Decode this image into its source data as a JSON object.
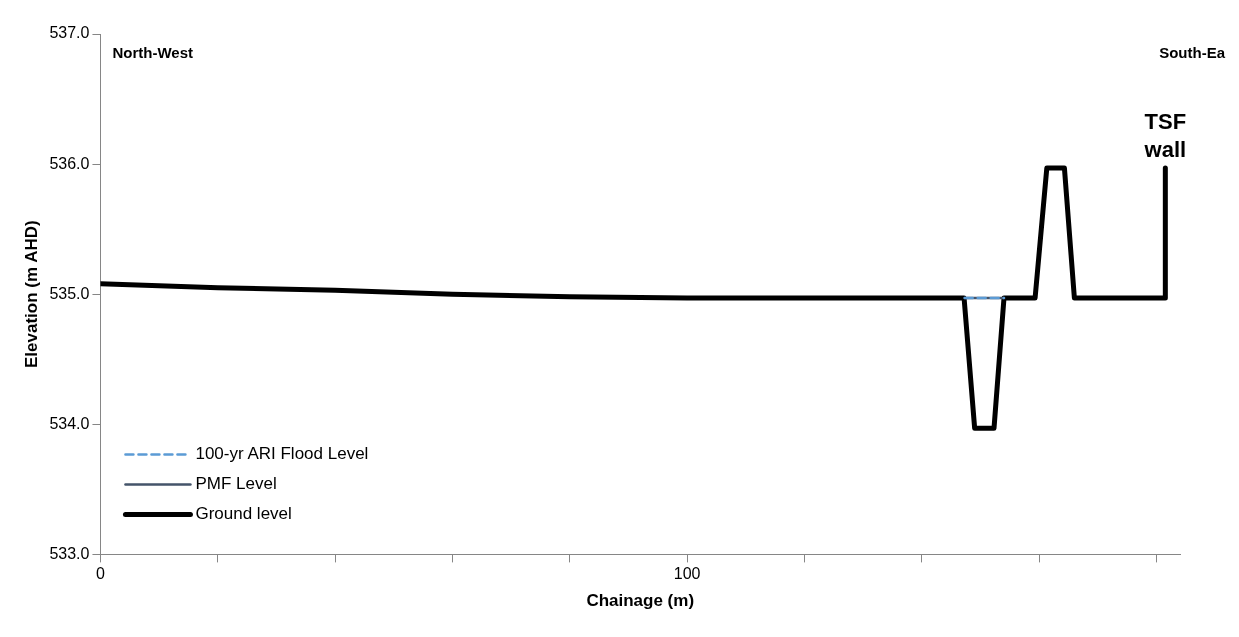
{
  "chart_data": {
    "type": "line",
    "xlabel": "Chainage (m)",
    "ylabel": "Elevation (m AHD)",
    "xlim": [
      0,
      184
    ],
    "xticks": [
      0,
      {
        "value": 20,
        "label": null
      },
      {
        "value": 40,
        "label": null
      },
      {
        "value": 60,
        "label": null
      },
      {
        "value": 80,
        "label": null
      },
      100,
      {
        "value": 120,
        "label": null
      },
      {
        "value": 140,
        "label": null
      },
      {
        "value": 160,
        "label": null
      },
      {
        "value": 180,
        "label": null
      }
    ],
    "ylim": [
      533,
      537
    ],
    "yticks": [
      {
        "value": 533,
        "label": "533.0"
      },
      {
        "value": 534,
        "label": "534.0"
      },
      {
        "value": 535,
        "label": "535.0"
      },
      {
        "value": 536,
        "label": "536.0"
      },
      {
        "value": 537,
        "label": "537.0"
      }
    ],
    "grid": false,
    "legend": "bottom left",
    "marker": "none",
    "series": [
      {
        "name": "Ground level",
        "color": "#000000",
        "line_style": "solid",
        "x": [
          0,
          20,
          40,
          60,
          80,
          100,
          120,
          140,
          147.2,
          149.0,
          152.3,
          154.0,
          159.3,
          161.3,
          164.3,
          166.0,
          181.5,
          181.5
        ],
        "values": [
          535.08,
          535.05,
          535.03,
          535.0,
          534.98,
          534.97,
          534.97,
          534.97,
          534.97,
          533.97,
          533.97,
          534.97,
          534.97,
          535.97,
          535.97,
          534.97,
          534.97,
          535.97
        ]
      },
      {
        "name": "PMF Level",
        "color": "#44546a",
        "line_style": "solid",
        "x": [
          147.3,
          154.0
        ],
        "values": [
          534.97,
          534.97
        ]
      },
      {
        "name": "100-yr ARI Flood Level",
        "color": "#5b9bd5",
        "line_style": "dashed",
        "x": [
          147.3,
          154.0
        ],
        "values": [
          534.97,
          534.97
        ]
      }
    ],
    "annotations": [
      "North-West",
      "South-Ea",
      {
        "text": "TSF wall",
        "x": 181.5,
        "y": 535.97
      }
    ]
  }
}
